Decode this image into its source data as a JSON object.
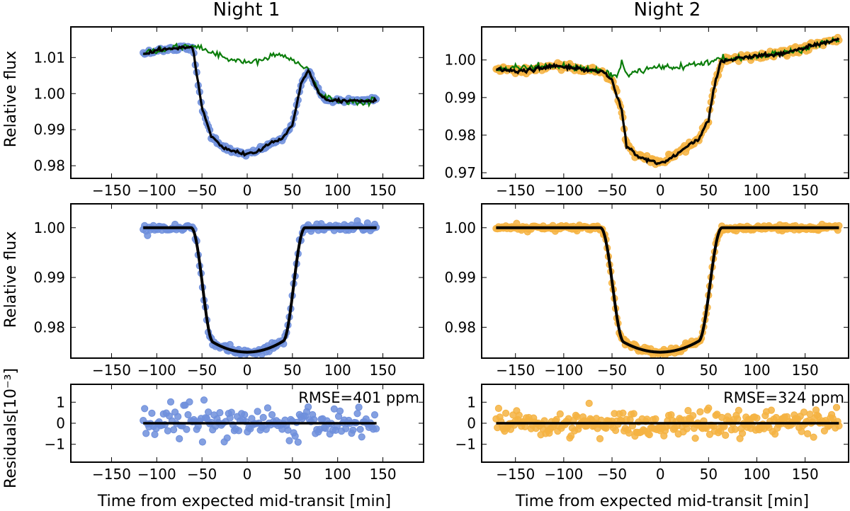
{
  "figure": {
    "xlabel": "Time from expected mid-transit [min]",
    "ylabel_flux": "Relative flux",
    "ylabel_residuals": "Residuals[10⁻³]"
  },
  "colors": {
    "night1_points": "#6f8fdc",
    "night2_points": "#f5b342",
    "trend_model": "#0a7d0a",
    "fit_model": "#000000"
  },
  "chart_data": [
    {
      "id": "n1_raw",
      "type": "scatter",
      "night": "Night 1",
      "title": "Night 1",
      "ylabel": "Relative flux",
      "xlim": [
        -195,
        195
      ],
      "ylim": [
        0.9765,
        1.0185
      ],
      "xticks": [
        "-150",
        "-100",
        "-50",
        "0",
        "50",
        "100",
        "150"
      ],
      "yticks": [
        "0.98",
        "0.99",
        "1.00",
        "1.01"
      ],
      "x_range": [
        -115,
        143
      ],
      "series": [
        {
          "name": "data",
          "x": [
            -115,
            -100,
            -80,
            -65,
            -60,
            -50,
            -40,
            -30,
            -20,
            -10,
            0,
            10,
            20,
            30,
            40,
            50,
            60,
            68,
            80,
            90,
            100,
            115,
            130,
            143
          ],
          "y": [
            1.011,
            1.012,
            1.0125,
            1.013,
            1.0125,
            0.996,
            0.9885,
            0.9855,
            0.9845,
            0.9837,
            0.9833,
            0.9838,
            0.9855,
            0.9865,
            0.9878,
            0.9915,
            1.003,
            1.0065,
            1.0,
            0.998,
            0.998,
            0.998,
            0.998,
            0.998
          ]
        },
        {
          "name": "trend",
          "x": [
            -115,
            -60,
            -40,
            -20,
            0,
            20,
            30,
            40,
            55,
            68,
            80,
            100,
            120,
            143
          ],
          "y": [
            1.011,
            1.0135,
            1.0115,
            1.0095,
            1.0085,
            1.0095,
            1.011,
            1.0105,
            1.0085,
            1.0065,
            1.0,
            0.998,
            0.9975,
            0.998
          ]
        }
      ]
    },
    {
      "id": "n2_raw",
      "type": "scatter",
      "night": "Night 2",
      "title": "Night 2",
      "ylabel": "",
      "xlim": [
        -185,
        195
      ],
      "ylim": [
        0.9685,
        1.0088
      ],
      "xticks": [
        "-150",
        "-100",
        "-50",
        "0",
        "50",
        "100",
        "150"
      ],
      "yticks": [
        "0.97",
        "0.98",
        "0.99",
        "1.00"
      ],
      "x_range": [
        -170,
        185
      ],
      "series": [
        {
          "name": "data",
          "x": [
            -170,
            -140,
            -110,
            -80,
            -60,
            -50,
            -40,
            -35,
            -25,
            -15,
            -5,
            5,
            15,
            25,
            40,
            50,
            55,
            62,
            80,
            100,
            120,
            140,
            160,
            185
          ],
          "y": [
            0.9975,
            0.997,
            0.9985,
            0.9975,
            0.997,
            0.9945,
            0.9865,
            0.9775,
            0.9745,
            0.9735,
            0.9728,
            0.973,
            0.9745,
            0.9765,
            0.979,
            0.984,
            0.992,
            0.9995,
            1.0005,
            1.001,
            1.0015,
            1.0025,
            1.004,
            1.0055
          ]
        },
        {
          "name": "trend",
          "x": [
            -170,
            -110,
            -60,
            -45,
            -40,
            -35,
            -20,
            0,
            20,
            40,
            62,
            100,
            140,
            185
          ],
          "y": [
            0.9975,
            0.9985,
            0.997,
            0.9955,
            1.0,
            0.996,
            0.997,
            0.998,
            0.998,
            0.999,
            1.0,
            1.001,
            1.0025,
            1.0055
          ]
        }
      ]
    },
    {
      "id": "n1_det",
      "type": "scatter",
      "night": "Night 1",
      "ylabel": "Relative flux",
      "xlim": [
        -195,
        195
      ],
      "ylim": [
        0.9738,
        1.0048
      ],
      "xticks": [
        "-150",
        "-100",
        "-50",
        "0",
        "50",
        "100",
        "150"
      ],
      "yticks": [
        "0.98",
        "0.99",
        "1.00"
      ],
      "x_range": [
        -115,
        143
      ],
      "model": {
        "depth": 0.025,
        "t_ingress_start": -62,
        "t_ingress_end": -38,
        "t_egress_start": 40,
        "t_egress_end": 64
      },
      "noise_scale": 0.00045
    },
    {
      "id": "n2_det",
      "type": "scatter",
      "night": "Night 2",
      "ylabel": "",
      "xlim": [
        -185,
        195
      ],
      "ylim": [
        0.9738,
        1.0048
      ],
      "xticks": [
        "-150",
        "-100",
        "-50",
        "0",
        "50",
        "100",
        "150"
      ],
      "yticks": [
        "0.98",
        "0.99",
        "1.00"
      ],
      "x_range": [
        -170,
        185
      ],
      "model": {
        "depth": 0.025,
        "t_ingress_start": -62,
        "t_ingress_end": -38,
        "t_egress_start": 40,
        "t_egress_end": 64
      },
      "noise_scale": 0.0003
    },
    {
      "id": "n1_res",
      "type": "scatter",
      "night": "Night 1",
      "ylabel": "Residuals[10⁻³]",
      "xlim": [
        -195,
        195
      ],
      "ylim": [
        -1.85,
        1.85
      ],
      "xticks": [
        "-150",
        "-100",
        "-50",
        "0",
        "50",
        "100",
        "150"
      ],
      "yticks": [
        "-1",
        "0",
        "1"
      ],
      "x_range": [
        -115,
        143
      ],
      "rmse_label": "RMSE=401 ppm",
      "rmse_ppm": 401
    },
    {
      "id": "n2_res",
      "type": "scatter",
      "night": "Night 2",
      "ylabel": "",
      "xlim": [
        -185,
        195
      ],
      "ylim": [
        -1.85,
        1.85
      ],
      "xticks": [
        "-150",
        "-100",
        "-50",
        "0",
        "50",
        "100",
        "150"
      ],
      "yticks": [
        "-1",
        "0",
        "1"
      ],
      "x_range": [
        -170,
        185
      ],
      "rmse_label": "RMSE=324 ppm",
      "rmse_ppm": 324
    }
  ]
}
